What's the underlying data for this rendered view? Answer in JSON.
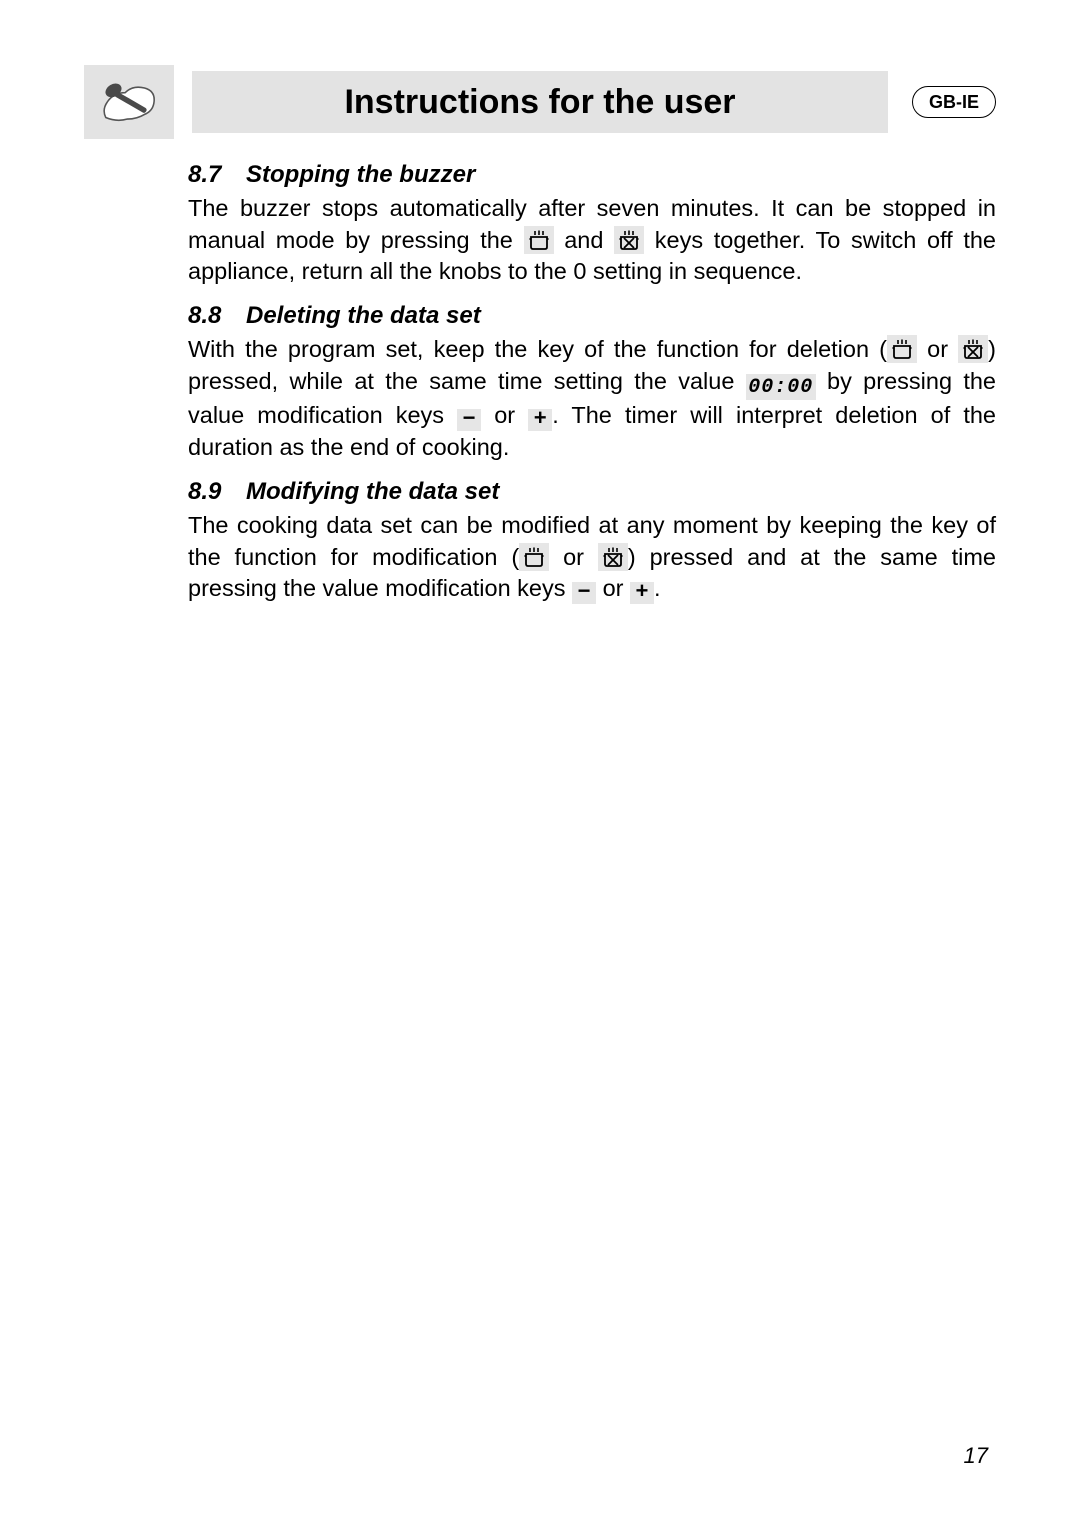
{
  "header": {
    "title": "Instructions for the user",
    "lang_badge": "GB-IE"
  },
  "icons": {
    "minus": "−",
    "plus": "+",
    "time_display": "00:00"
  },
  "sections": [
    {
      "num": "8.7",
      "title": "Stopping the buzzer",
      "parts": [
        {
          "t": "text",
          "v": "The buzzer stops automatically after seven minutes. It can be stopped in manual mode by pressing the "
        },
        {
          "t": "icon",
          "v": "pot"
        },
        {
          "t": "text",
          "v": " and "
        },
        {
          "t": "icon",
          "v": "potx"
        },
        {
          "t": "text",
          "v": " keys together. To switch off the appliance, return all the knobs to the 0 setting in sequence."
        }
      ]
    },
    {
      "num": "8.8",
      "title": "Deleting the data set",
      "parts": [
        {
          "t": "text",
          "v": "With the program set, keep the key of the function for deletion ("
        },
        {
          "t": "icon",
          "v": "pot"
        },
        {
          "t": "text",
          "v": " or "
        },
        {
          "t": "icon",
          "v": "potx"
        },
        {
          "t": "text",
          "v": ") pressed, while at the same time setting the value "
        },
        {
          "t": "time"
        },
        {
          "t": "text",
          "v": " by pressing the value modification keys "
        },
        {
          "t": "pm",
          "v": "minus"
        },
        {
          "t": "text",
          "v": " or "
        },
        {
          "t": "pm",
          "v": "plus"
        },
        {
          "t": "text",
          "v": ". The timer will interpret deletion of the duration as the end of cooking."
        }
      ]
    },
    {
      "num": "8.9",
      "title": "Modifying the data set",
      "parts": [
        {
          "t": "text",
          "v": "The cooking data set can be modified at any moment by keeping the key of the function for modification ("
        },
        {
          "t": "icon",
          "v": "pot"
        },
        {
          "t": "text",
          "v": " or "
        },
        {
          "t": "icon",
          "v": "potx"
        },
        {
          "t": "text",
          "v": ") pressed and at the same time pressing the value modification keys "
        },
        {
          "t": "pm",
          "v": "minus"
        },
        {
          "t": "text",
          "v": " or "
        },
        {
          "t": "pm",
          "v": "plus"
        },
        {
          "t": "text",
          "v": "."
        }
      ]
    }
  ],
  "page_number": "17"
}
